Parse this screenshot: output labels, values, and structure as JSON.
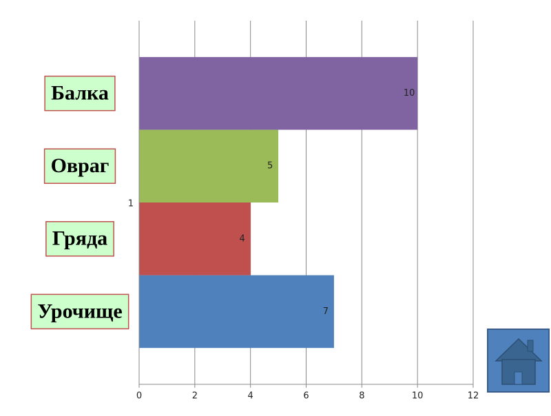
{
  "chart_data": {
    "type": "bar",
    "orientation": "horizontal",
    "categories": [
      "1"
    ],
    "series": [
      {
        "name": "Урочище",
        "color": "#4f81bd",
        "values": [
          7
        ]
      },
      {
        "name": "Гряда",
        "color": "#c0504d",
        "values": [
          4
        ]
      },
      {
        "name": "Овраг",
        "color": "#9bbb59",
        "values": [
          5
        ]
      },
      {
        "name": "Балка",
        "color": "#8064a2",
        "values": [
          10
        ]
      }
    ],
    "xlim": [
      0,
      12
    ],
    "xticks": [
      0,
      2,
      4,
      6,
      8,
      10,
      12
    ],
    "grid": true
  }
}
